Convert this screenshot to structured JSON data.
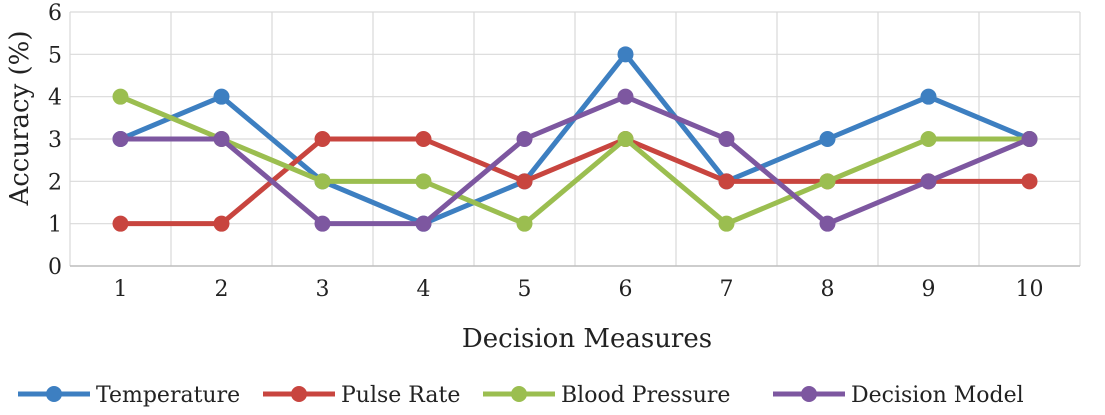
{
  "chart_data": {
    "type": "line",
    "xlabel": "Decision Measures",
    "ylabel": "Accuracy (%)",
    "ylim": [
      0,
      6
    ],
    "yticks": [
      "0",
      "1",
      "2",
      "3",
      "4",
      "5",
      "6"
    ],
    "categories": [
      "1",
      "2",
      "3",
      "4",
      "5",
      "6",
      "7",
      "8",
      "9",
      "10"
    ],
    "grid": true,
    "legend_position": "bottom",
    "series": [
      {
        "name": "Temperature",
        "color": "#3d7fc1",
        "values": [
          3,
          4,
          2,
          1,
          2,
          5,
          2,
          3,
          4,
          3
        ]
      },
      {
        "name": "Pulse Rate",
        "color": "#c8453f",
        "values": [
          1,
          1,
          3,
          3,
          2,
          3,
          2,
          2,
          2,
          2
        ]
      },
      {
        "name": "Blood Pressure",
        "color": "#9bbe50",
        "values": [
          4,
          3,
          2,
          2,
          1,
          3,
          1,
          2,
          3,
          3
        ]
      },
      {
        "name": "Decision Model",
        "color": "#7d57a0",
        "values": [
          3,
          3,
          1,
          1,
          3,
          4,
          3,
          1,
          2,
          3
        ]
      }
    ]
  }
}
